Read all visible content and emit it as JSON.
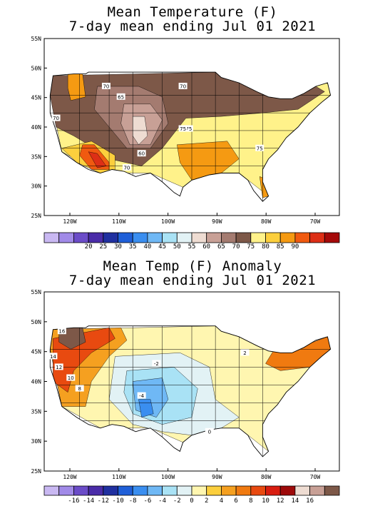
{
  "maps": [
    {
      "id": "temp",
      "title_line1": "Mean Temperature (F)",
      "title_line2": "7-day mean ending Jul 01 2021",
      "lat_ticks": [
        "55N",
        "50N",
        "45N",
        "40N",
        "35N",
        "30N",
        "25N"
      ],
      "lon_ticks": [
        "120W",
        "110W",
        "100W",
        "90W",
        "80W",
        "70W"
      ],
      "contour_labels": [
        "70",
        "65",
        "70",
        "75",
        "70",
        "60",
        "70",
        "75",
        "75"
      ],
      "colorbar": {
        "colors": [
          "#c9b8f2",
          "#a18ae8",
          "#6b4cc8",
          "#4a2ca8",
          "#2030a0",
          "#1f5fd8",
          "#3a8ef0",
          "#6fb8f5",
          "#a9e2f5",
          "#e2f2f5",
          "#eedcd2",
          "#c8a096",
          "#a47b70",
          "#7d5848",
          "#fff28a",
          "#fccf3d",
          "#f59a12",
          "#f05a10",
          "#dd2f16",
          "#a50a0a"
        ],
        "labels": [
          "20",
          "25",
          "30",
          "35",
          "40",
          "45",
          "50",
          "55",
          "60",
          "65",
          "70",
          "75",
          "80",
          "85",
          "90"
        ]
      }
    },
    {
      "id": "anomaly",
      "title_line1": "Mean Temp (F) Anomaly",
      "title_line2": "7-day mean ending Jul 01 2021",
      "lat_ticks": [
        "55N",
        "50N",
        "45N",
        "40N",
        "35N",
        "30N",
        "25N"
      ],
      "lon_ticks": [
        "120W",
        "110W",
        "100W",
        "90W",
        "80W",
        "70W"
      ],
      "contour_labels": [
        "16",
        "14",
        "12",
        "10",
        "8",
        "-2",
        "-4",
        "0",
        "2"
      ],
      "colorbar": {
        "colors": [
          "#c9b8f2",
          "#a18ae8",
          "#6b4cc8",
          "#4a2ca8",
          "#2030a0",
          "#1f5fd8",
          "#3a8ef0",
          "#6fb8f5",
          "#a9e2f5",
          "#e2f2f5",
          "#fff6b0",
          "#fccf3d",
          "#f5a020",
          "#f07a10",
          "#e84a10",
          "#d81d10",
          "#9e0a0a",
          "#eedcd2",
          "#c8a096",
          "#7d5848"
        ],
        "labels": [
          "-16",
          "-14",
          "-12",
          "-10",
          "-8",
          "-6",
          "-4",
          "-2",
          "0",
          "2",
          "4",
          "6",
          "8",
          "10",
          "12",
          "14",
          "16"
        ]
      }
    }
  ]
}
